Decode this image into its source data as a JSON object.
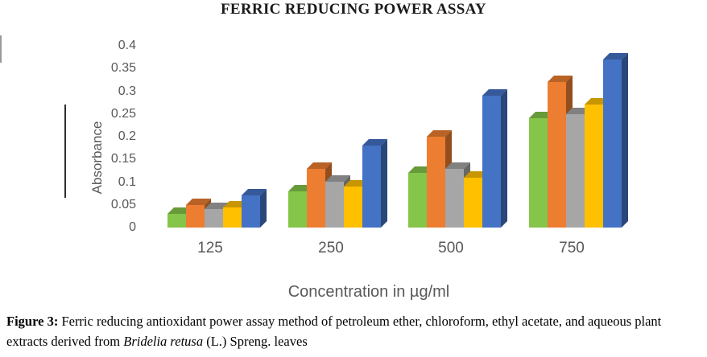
{
  "figure": {
    "caption": {
      "label": "Figure 3:",
      "text_before_italic": " Ferric reducing antioxidant power assay method of petroleum ether, chloroform, ethyl acetate, and aqueous plant extracts derived from ",
      "italic_text": "Bridelia retusa",
      "text_after_italic": " (L.) Spreng. leaves"
    }
  },
  "chart_data": {
    "type": "bar",
    "style": "3d-column",
    "title": "FERRIC REDUCING POWER ASSAY",
    "xlabel": "Concentration in µg/ml",
    "ylabel": "Absorbance",
    "categories": [
      "125",
      "250",
      "500",
      "750"
    ],
    "series": [
      {
        "name": "green",
        "color": "#85C549",
        "values": [
          0.03,
          0.08,
          0.12,
          0.24
        ]
      },
      {
        "name": "orange",
        "color": "#ED7D31",
        "values": [
          0.05,
          0.13,
          0.2,
          0.32
        ]
      },
      {
        "name": "gray",
        "color": "#A6A6A6",
        "values": [
          0.04,
          0.1,
          0.13,
          0.25
        ]
      },
      {
        "name": "yellow",
        "color": "#FFC000",
        "values": [
          0.045,
          0.09,
          0.11,
          0.27
        ]
      },
      {
        "name": "blue",
        "color": "#4472C4",
        "values": [
          0.07,
          0.18,
          0.29,
          0.37
        ]
      }
    ],
    "ylim": [
      0,
      0.4
    ],
    "ytick_step": 0.05,
    "ytick_labels": [
      "0",
      "0.05",
      "0.1",
      "0.15",
      "0.2",
      "0.25",
      "0.3",
      "0.35",
      "0.4"
    ],
    "grid": false,
    "legend": "none"
  }
}
